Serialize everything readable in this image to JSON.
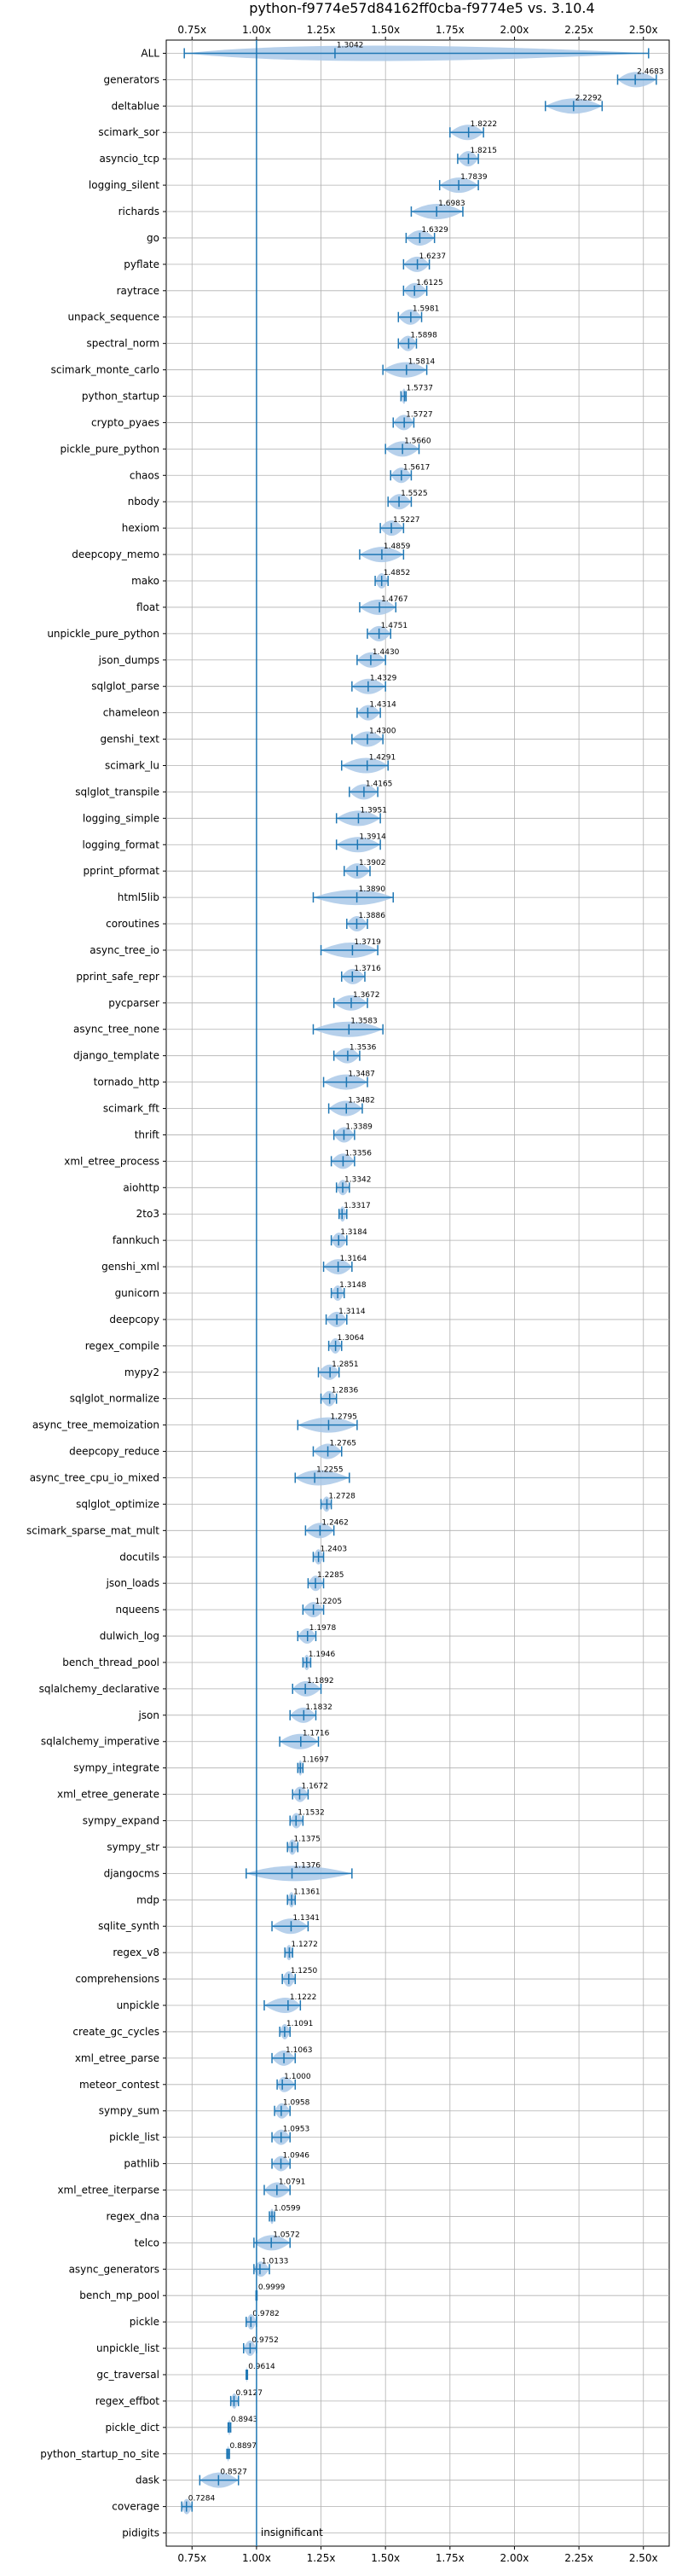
{
  "chart_data": {
    "type": "violin",
    "title": "python-f9774e57d84162ff0cba-f9774e5 vs. 3.10.4",
    "xlim": [
      0.65,
      2.6
    ],
    "xticks": [
      "0.75x",
      "1.00x",
      "1.25x",
      "1.50x",
      "1.75x",
      "2.00x",
      "2.25x",
      "2.50x"
    ],
    "xtick_values": [
      0.75,
      1.0,
      1.25,
      1.5,
      1.75,
      2.0,
      2.25,
      2.5
    ],
    "reference_line": 1.0,
    "grid": true,
    "annotation": "insignificant",
    "colors": {
      "violin": "#a9c8e8",
      "line": "#1f77b4"
    },
    "benchmarks": [
      {
        "name": "ALL",
        "value": "1.3042",
        "median": 1.3042,
        "lo": 0.72,
        "hi": 2.52
      },
      {
        "name": "generators",
        "value": "2.4683",
        "median": 2.4683,
        "lo": 2.4,
        "hi": 2.55
      },
      {
        "name": "deltablue",
        "value": "2.2292",
        "median": 2.2292,
        "lo": 2.12,
        "hi": 2.34
      },
      {
        "name": "scimark_sor",
        "value": "1.8222",
        "median": 1.8222,
        "lo": 1.75,
        "hi": 1.88
      },
      {
        "name": "asyncio_tcp",
        "value": "1.8215",
        "median": 1.8215,
        "lo": 1.78,
        "hi": 1.86
      },
      {
        "name": "logging_silent",
        "value": "1.7839",
        "median": 1.7839,
        "lo": 1.71,
        "hi": 1.86
      },
      {
        "name": "richards",
        "value": "1.6983",
        "median": 1.6983,
        "lo": 1.6,
        "hi": 1.8
      },
      {
        "name": "go",
        "value": "1.6329",
        "median": 1.6329,
        "lo": 1.58,
        "hi": 1.69
      },
      {
        "name": "pyflate",
        "value": "1.6237",
        "median": 1.6237,
        "lo": 1.57,
        "hi": 1.67
      },
      {
        "name": "raytrace",
        "value": "1.6125",
        "median": 1.6125,
        "lo": 1.57,
        "hi": 1.66
      },
      {
        "name": "unpack_sequence",
        "value": "1.5981",
        "median": 1.5981,
        "lo": 1.55,
        "hi": 1.64
      },
      {
        "name": "spectral_norm",
        "value": "1.5898",
        "median": 1.5898,
        "lo": 1.55,
        "hi": 1.62
      },
      {
        "name": "scimark_monte_carlo",
        "value": "1.5814",
        "median": 1.5814,
        "lo": 1.49,
        "hi": 1.66
      },
      {
        "name": "python_startup",
        "value": "1.5737",
        "median": 1.5737,
        "lo": 1.56,
        "hi": 1.58
      },
      {
        "name": "crypto_pyaes",
        "value": "1.5727",
        "median": 1.5727,
        "lo": 1.53,
        "hi": 1.61
      },
      {
        "name": "pickle_pure_python",
        "value": "1.5660",
        "median": 1.566,
        "lo": 1.5,
        "hi": 1.63
      },
      {
        "name": "chaos",
        "value": "1.5617",
        "median": 1.5617,
        "lo": 1.52,
        "hi": 1.6
      },
      {
        "name": "nbody",
        "value": "1.5525",
        "median": 1.5525,
        "lo": 1.51,
        "hi": 1.6
      },
      {
        "name": "hexiom",
        "value": "1.5227",
        "median": 1.5227,
        "lo": 1.48,
        "hi": 1.57
      },
      {
        "name": "deepcopy_memo",
        "value": "1.4859",
        "median": 1.4859,
        "lo": 1.4,
        "hi": 1.57
      },
      {
        "name": "mako",
        "value": "1.4852",
        "median": 1.4852,
        "lo": 1.46,
        "hi": 1.51
      },
      {
        "name": "float",
        "value": "1.4767",
        "median": 1.4767,
        "lo": 1.4,
        "hi": 1.54
      },
      {
        "name": "unpickle_pure_python",
        "value": "1.4751",
        "median": 1.4751,
        "lo": 1.43,
        "hi": 1.52
      },
      {
        "name": "json_dumps",
        "value": "1.4430",
        "median": 1.443,
        "lo": 1.39,
        "hi": 1.5
      },
      {
        "name": "sqlglot_parse",
        "value": "1.4329",
        "median": 1.4329,
        "lo": 1.37,
        "hi": 1.5
      },
      {
        "name": "chameleon",
        "value": "1.4314",
        "median": 1.4314,
        "lo": 1.39,
        "hi": 1.48
      },
      {
        "name": "genshi_text",
        "value": "1.4300",
        "median": 1.43,
        "lo": 1.37,
        "hi": 1.49
      },
      {
        "name": "scimark_lu",
        "value": "1.4291",
        "median": 1.4291,
        "lo": 1.33,
        "hi": 1.51
      },
      {
        "name": "sqlglot_transpile",
        "value": "1.4165",
        "median": 1.4165,
        "lo": 1.36,
        "hi": 1.47
      },
      {
        "name": "logging_simple",
        "value": "1.3951",
        "median": 1.3951,
        "lo": 1.31,
        "hi": 1.48
      },
      {
        "name": "logging_format",
        "value": "1.3914",
        "median": 1.3914,
        "lo": 1.31,
        "hi": 1.48
      },
      {
        "name": "pprint_pformat",
        "value": "1.3902",
        "median": 1.3902,
        "lo": 1.34,
        "hi": 1.44
      },
      {
        "name": "html5lib",
        "value": "1.3890",
        "median": 1.389,
        "lo": 1.22,
        "hi": 1.53
      },
      {
        "name": "coroutines",
        "value": "1.3886",
        "median": 1.3886,
        "lo": 1.35,
        "hi": 1.43
      },
      {
        "name": "async_tree_io",
        "value": "1.3719",
        "median": 1.3719,
        "lo": 1.25,
        "hi": 1.47
      },
      {
        "name": "pprint_safe_repr",
        "value": "1.3716",
        "median": 1.3716,
        "lo": 1.33,
        "hi": 1.42
      },
      {
        "name": "pycparser",
        "value": "1.3672",
        "median": 1.3672,
        "lo": 1.3,
        "hi": 1.43
      },
      {
        "name": "async_tree_none",
        "value": "1.3583",
        "median": 1.3583,
        "lo": 1.22,
        "hi": 1.49
      },
      {
        "name": "django_template",
        "value": "1.3536",
        "median": 1.3536,
        "lo": 1.3,
        "hi": 1.4
      },
      {
        "name": "tornado_http",
        "value": "1.3487",
        "median": 1.3487,
        "lo": 1.26,
        "hi": 1.43
      },
      {
        "name": "scimark_fft",
        "value": "1.3482",
        "median": 1.3482,
        "lo": 1.28,
        "hi": 1.41
      },
      {
        "name": "thrift",
        "value": "1.3389",
        "median": 1.3389,
        "lo": 1.3,
        "hi": 1.38
      },
      {
        "name": "xml_etree_process",
        "value": "1.3356",
        "median": 1.3356,
        "lo": 1.29,
        "hi": 1.38
      },
      {
        "name": "aiohttp",
        "value": "1.3342",
        "median": 1.3342,
        "lo": 1.31,
        "hi": 1.36
      },
      {
        "name": "2to3",
        "value": "1.3317",
        "median": 1.3317,
        "lo": 1.32,
        "hi": 1.35
      },
      {
        "name": "fannkuch",
        "value": "1.3184",
        "median": 1.3184,
        "lo": 1.29,
        "hi": 1.35
      },
      {
        "name": "genshi_xml",
        "value": "1.3164",
        "median": 1.3164,
        "lo": 1.26,
        "hi": 1.37
      },
      {
        "name": "gunicorn",
        "value": "1.3148",
        "median": 1.3148,
        "lo": 1.29,
        "hi": 1.34
      },
      {
        "name": "deepcopy",
        "value": "1.3114",
        "median": 1.3114,
        "lo": 1.27,
        "hi": 1.35
      },
      {
        "name": "regex_compile",
        "value": "1.3064",
        "median": 1.3064,
        "lo": 1.28,
        "hi": 1.33
      },
      {
        "name": "mypy2",
        "value": "1.2851",
        "median": 1.2851,
        "lo": 1.24,
        "hi": 1.32
      },
      {
        "name": "sqlglot_normalize",
        "value": "1.2836",
        "median": 1.2836,
        "lo": 1.25,
        "hi": 1.31
      },
      {
        "name": "async_tree_memoization",
        "value": "1.2795",
        "median": 1.2795,
        "lo": 1.16,
        "hi": 1.39
      },
      {
        "name": "deepcopy_reduce",
        "value": "1.2765",
        "median": 1.2765,
        "lo": 1.22,
        "hi": 1.33
      },
      {
        "name": "async_tree_cpu_io_mixed",
        "value": "1.2255",
        "median": 1.2255,
        "lo": 1.15,
        "hi": 1.36
      },
      {
        "name": "sqlglot_optimize",
        "value": "1.2728",
        "median": 1.2728,
        "lo": 1.25,
        "hi": 1.29
      },
      {
        "name": "scimark_sparse_mat_mult",
        "value": "1.2462",
        "median": 1.2462,
        "lo": 1.19,
        "hi": 1.3
      },
      {
        "name": "docutils",
        "value": "1.2403",
        "median": 1.2403,
        "lo": 1.22,
        "hi": 1.26
      },
      {
        "name": "json_loads",
        "value": "1.2285",
        "median": 1.2285,
        "lo": 1.2,
        "hi": 1.26
      },
      {
        "name": "nqueens",
        "value": "1.2205",
        "median": 1.2205,
        "lo": 1.18,
        "hi": 1.26
      },
      {
        "name": "dulwich_log",
        "value": "1.1978",
        "median": 1.1978,
        "lo": 1.16,
        "hi": 1.23
      },
      {
        "name": "bench_thread_pool",
        "value": "1.1946",
        "median": 1.1946,
        "lo": 1.18,
        "hi": 1.21
      },
      {
        "name": "sqlalchemy_declarative",
        "value": "1.1892",
        "median": 1.1892,
        "lo": 1.14,
        "hi": 1.25
      },
      {
        "name": "json",
        "value": "1.1832",
        "median": 1.1832,
        "lo": 1.13,
        "hi": 1.23
      },
      {
        "name": "sqlalchemy_imperative",
        "value": "1.1716",
        "median": 1.1716,
        "lo": 1.09,
        "hi": 1.24
      },
      {
        "name": "sympy_integrate",
        "value": "1.1697",
        "median": 1.1697,
        "lo": 1.16,
        "hi": 1.18
      },
      {
        "name": "xml_etree_generate",
        "value": "1.1672",
        "median": 1.1672,
        "lo": 1.14,
        "hi": 1.2
      },
      {
        "name": "sympy_expand",
        "value": "1.1532",
        "median": 1.1532,
        "lo": 1.13,
        "hi": 1.18
      },
      {
        "name": "sympy_str",
        "value": "1.1375",
        "median": 1.1375,
        "lo": 1.12,
        "hi": 1.16
      },
      {
        "name": "djangocms",
        "value": "1.1376",
        "median": 1.1376,
        "lo": 0.96,
        "hi": 1.37
      },
      {
        "name": "mdp",
        "value": "1.1361",
        "median": 1.1361,
        "lo": 1.12,
        "hi": 1.15
      },
      {
        "name": "sqlite_synth",
        "value": "1.1341",
        "median": 1.1341,
        "lo": 1.06,
        "hi": 1.2
      },
      {
        "name": "regex_v8",
        "value": "1.1272",
        "median": 1.1272,
        "lo": 1.11,
        "hi": 1.14
      },
      {
        "name": "comprehensions",
        "value": "1.1250",
        "median": 1.125,
        "lo": 1.1,
        "hi": 1.15
      },
      {
        "name": "unpickle",
        "value": "1.1222",
        "median": 1.1222,
        "lo": 1.03,
        "hi": 1.17
      },
      {
        "name": "create_gc_cycles",
        "value": "1.1091",
        "median": 1.1091,
        "lo": 1.09,
        "hi": 1.13
      },
      {
        "name": "xml_etree_parse",
        "value": "1.1063",
        "median": 1.1063,
        "lo": 1.06,
        "hi": 1.15
      },
      {
        "name": "meteor_contest",
        "value": "1.1000",
        "median": 1.1,
        "lo": 1.08,
        "hi": 1.15
      },
      {
        "name": "sympy_sum",
        "value": "1.0958",
        "median": 1.0958,
        "lo": 1.07,
        "hi": 1.13
      },
      {
        "name": "pickle_list",
        "value": "1.0953",
        "median": 1.0953,
        "lo": 1.06,
        "hi": 1.13
      },
      {
        "name": "pathlib",
        "value": "1.0946",
        "median": 1.0946,
        "lo": 1.06,
        "hi": 1.13
      },
      {
        "name": "xml_etree_iterparse",
        "value": "1.0791",
        "median": 1.0791,
        "lo": 1.03,
        "hi": 1.13
      },
      {
        "name": "regex_dna",
        "value": "1.0599",
        "median": 1.0599,
        "lo": 1.05,
        "hi": 1.07
      },
      {
        "name": "telco",
        "value": "1.0572",
        "median": 1.0572,
        "lo": 0.99,
        "hi": 1.13
      },
      {
        "name": "async_generators",
        "value": "1.0133",
        "median": 1.0133,
        "lo": 0.99,
        "hi": 1.05
      },
      {
        "name": "bench_mp_pool",
        "value": "0.9999",
        "median": 0.9999,
        "lo": 0.998,
        "hi": 1.002
      },
      {
        "name": "pickle",
        "value": "0.9782",
        "median": 0.9782,
        "lo": 0.96,
        "hi": 1.0
      },
      {
        "name": "unpickle_list",
        "value": "0.9752",
        "median": 0.9752,
        "lo": 0.95,
        "hi": 1.0
      },
      {
        "name": "gc_traversal",
        "value": "0.9614",
        "median": 0.9614,
        "lo": 0.96,
        "hi": 0.965
      },
      {
        "name": "regex_effbot",
        "value": "0.9127",
        "median": 0.9127,
        "lo": 0.9,
        "hi": 0.93
      },
      {
        "name": "pickle_dict",
        "value": "0.8943",
        "median": 0.8943,
        "lo": 0.89,
        "hi": 0.9
      },
      {
        "name": "python_startup_no_site",
        "value": "0.8897",
        "median": 0.8897,
        "lo": 0.885,
        "hi": 0.895
      },
      {
        "name": "dask",
        "value": "0.8527",
        "median": 0.8527,
        "lo": 0.78,
        "hi": 0.93
      },
      {
        "name": "coverage",
        "value": "0.7284",
        "median": 0.7284,
        "lo": 0.71,
        "hi": 0.75
      },
      {
        "name": "pidigits",
        "value": "",
        "median": null,
        "lo": null,
        "hi": null
      }
    ]
  }
}
